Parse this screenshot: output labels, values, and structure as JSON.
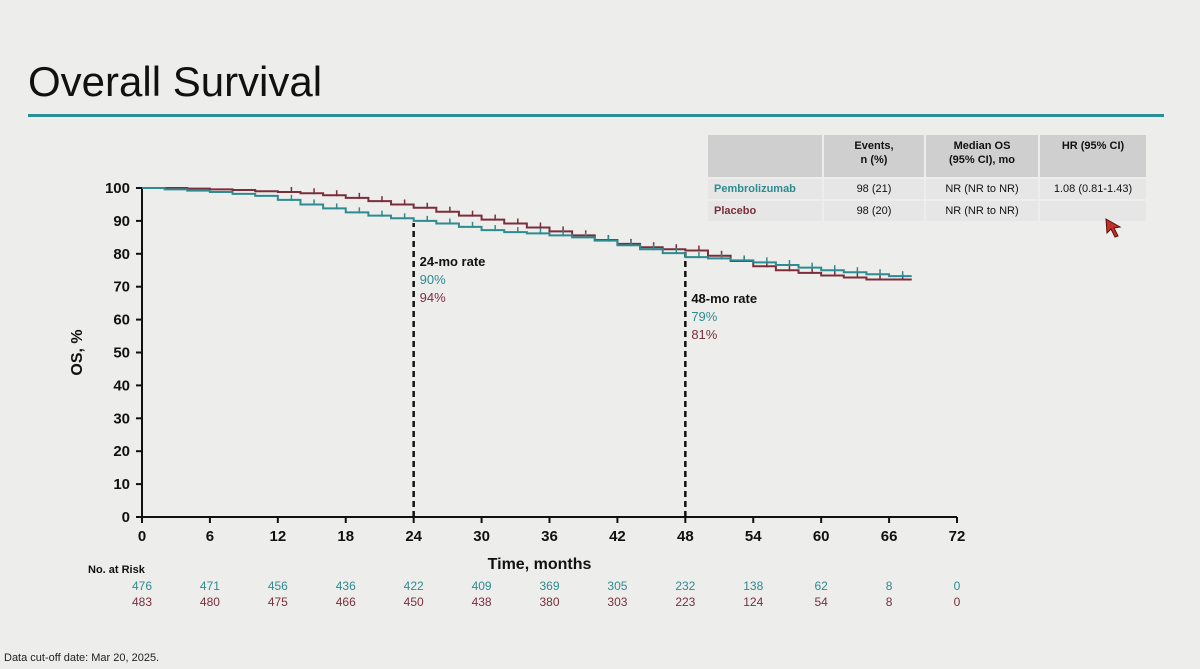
{
  "slide": {
    "title": "Overall Survival",
    "footnote": "Data cut-off date: Mar 20, 2025."
  },
  "table": {
    "headers": [
      "Events,\nn (%)",
      "Median OS\n(95% CI), mo",
      "HR (95% CI)"
    ],
    "rows": [
      {
        "arm": "Pembrolizumab",
        "events": "98 (21)",
        "median": "NR (NR to NR)",
        "hr": "1.08 (0.81-1.43)",
        "color": "#2e8b8f"
      },
      {
        "arm": "Placebo",
        "events": "98 (20)",
        "median": "NR (NR to NR)",
        "hr": "",
        "color": "#7a2e3b"
      }
    ]
  },
  "colors": {
    "pembrolizumab": "#2e8b8f",
    "placebo": "#7a2e3b",
    "accent_rule": "#2b8f95"
  },
  "chart_data": {
    "type": "line",
    "title": "",
    "xlabel": "Time, months",
    "ylabel": "OS, %",
    "xlim": [
      0,
      72
    ],
    "ylim": [
      0,
      100
    ],
    "xticks": [
      0,
      6,
      12,
      18,
      24,
      30,
      36,
      42,
      48,
      54,
      60,
      66,
      72
    ],
    "yticks": [
      0,
      10,
      20,
      30,
      40,
      50,
      60,
      70,
      80,
      90,
      100
    ],
    "grid": false,
    "series": [
      {
        "name": "Pembrolizumab",
        "color": "#2e8b8f",
        "x": [
          0,
          2,
          4,
          6,
          8,
          10,
          12,
          14,
          16,
          18,
          20,
          22,
          24,
          26,
          28,
          30,
          32,
          34,
          36,
          38,
          40,
          42,
          44,
          46,
          48,
          50,
          52,
          54,
          56,
          58,
          60,
          62,
          64,
          66,
          68
        ],
        "y": [
          100,
          99.6,
          99.2,
          98.8,
          98.2,
          97.6,
          96.4,
          95,
          93.8,
          92.6,
          91.6,
          90.8,
          90,
          89.2,
          88.2,
          87.2,
          86.6,
          86.2,
          85.6,
          85,
          84,
          82.6,
          81.4,
          80.2,
          79,
          78.6,
          78,
          77.4,
          76.6,
          75.8,
          75,
          74.4,
          73.8,
          73.2,
          73.2
        ]
      },
      {
        "name": "Placebo",
        "color": "#7a2e3b",
        "x": [
          0,
          2,
          4,
          6,
          8,
          10,
          12,
          14,
          16,
          18,
          20,
          22,
          24,
          26,
          28,
          30,
          32,
          34,
          36,
          38,
          40,
          42,
          44,
          46,
          48,
          50,
          52,
          54,
          56,
          58,
          60,
          62,
          64,
          66,
          68
        ],
        "y": [
          100,
          100,
          99.8,
          99.6,
          99.4,
          99,
          98.8,
          98.4,
          97.8,
          97,
          96,
          95,
          94,
          92.8,
          91.6,
          90.4,
          89.2,
          88,
          86.8,
          85.6,
          84.2,
          83,
          82,
          81.4,
          81,
          79.4,
          77.8,
          76.2,
          75,
          74.2,
          73.4,
          72.8,
          72.2,
          72.2,
          72.2
        ]
      }
    ],
    "annotations": [
      {
        "x": 24,
        "label": "24-mo rate",
        "values": [
          "90%",
          "94%"
        ]
      },
      {
        "x": 48,
        "label": "48-mo rate",
        "values": [
          "79%",
          "81%"
        ]
      }
    ],
    "at_risk": {
      "label": "No. at Risk",
      "times": [
        0,
        6,
        12,
        18,
        24,
        30,
        36,
        42,
        48,
        54,
        60,
        66,
        72
      ],
      "rows": [
        {
          "name": "Pembrolizumab",
          "color": "#2e8b8f",
          "values": [
            476,
            471,
            456,
            436,
            422,
            409,
            369,
            305,
            232,
            138,
            62,
            8,
            0
          ]
        },
        {
          "name": "Placebo",
          "color": "#7a2e3b",
          "values": [
            483,
            480,
            475,
            466,
            450,
            438,
            380,
            303,
            223,
            124,
            54,
            8,
            0
          ]
        }
      ]
    }
  }
}
